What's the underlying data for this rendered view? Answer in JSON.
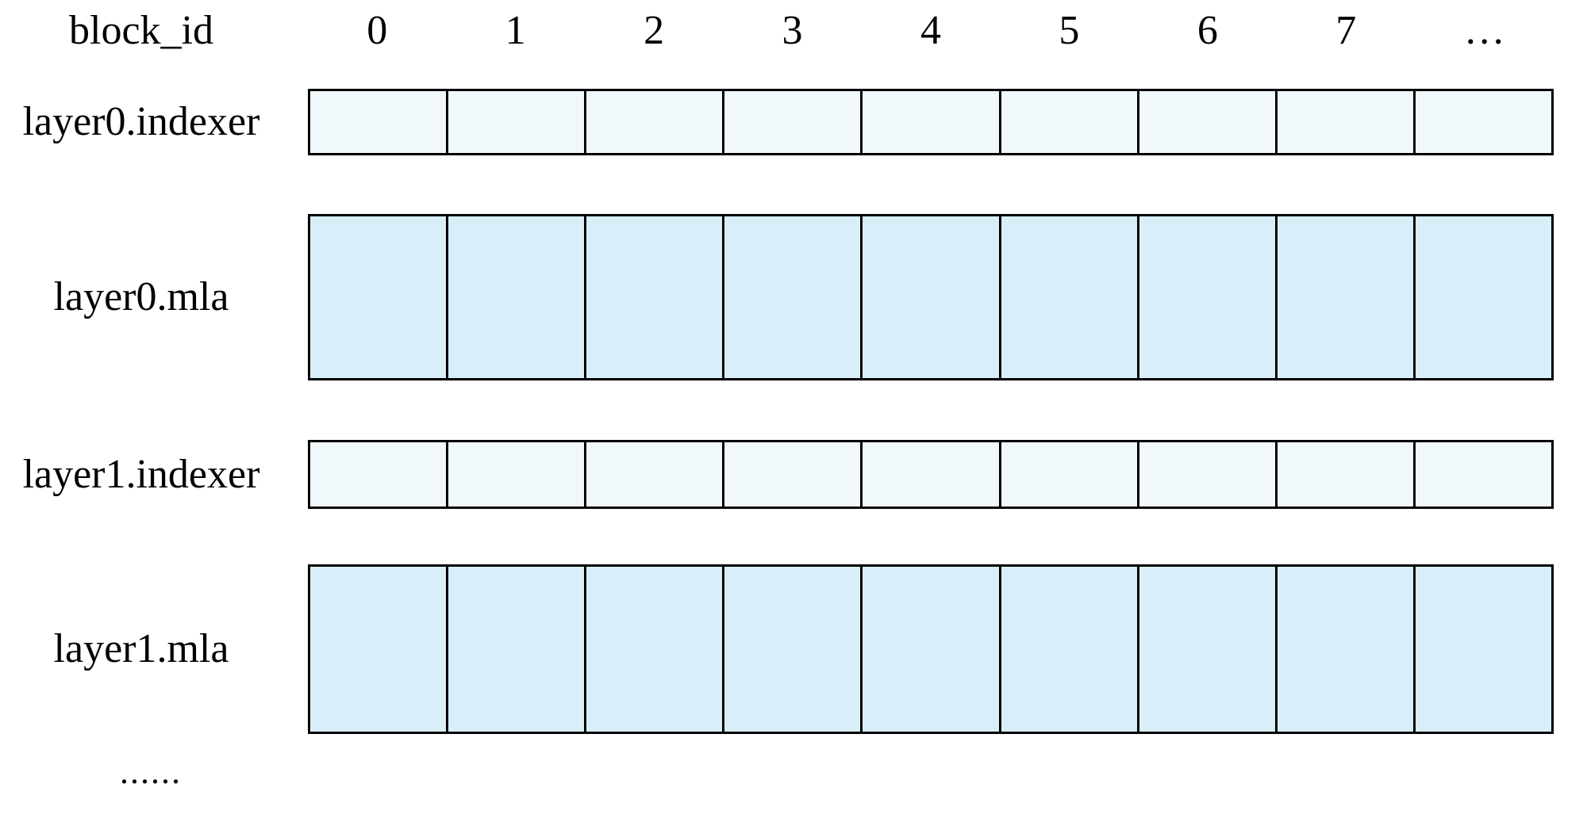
{
  "header": {
    "label": "block_id",
    "columns": [
      "0",
      "1",
      "2",
      "3",
      "4",
      "5",
      "6",
      "7",
      "…"
    ]
  },
  "rows": [
    {
      "label": "layer0.indexer",
      "kind": "indexer"
    },
    {
      "label": "layer0.mla",
      "kind": "mla"
    },
    {
      "label": "layer1.indexer",
      "kind": "indexer"
    },
    {
      "label": "layer1.mla",
      "kind": "mla"
    }
  ],
  "footer": {
    "ellipsis": "......"
  },
  "colors": {
    "indexer_fill": "#F0F8FB",
    "mla_fill": "#D8EEF9",
    "border_color": "#000000",
    "text_color": "#000000",
    "background": "#FFFFFF"
  }
}
